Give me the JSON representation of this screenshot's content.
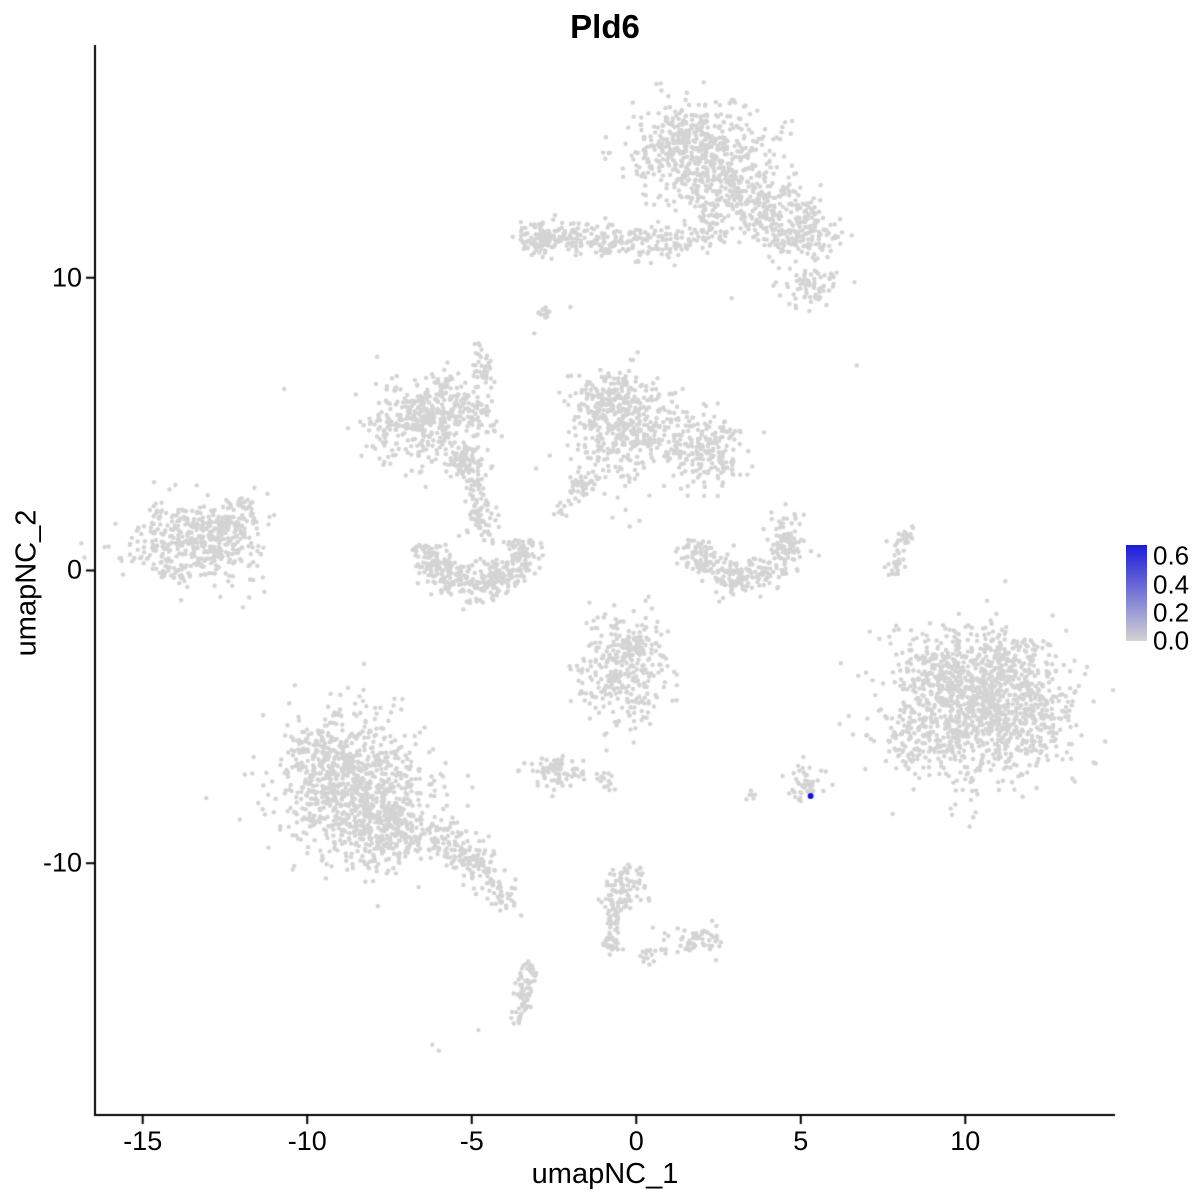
{
  "chart_data": {
    "type": "scatter",
    "title": "Pld6",
    "xlabel": "umapNC_1",
    "ylabel": "umapNC_2",
    "xlim": [
      -16.45,
      14.55
    ],
    "ylim": [
      -18.6,
      17.95
    ],
    "x_ticks": [
      "-15",
      "-10",
      "-5",
      "0",
      "5",
      "10"
    ],
    "x_tick_values": [
      -15,
      -10,
      -5,
      0,
      5,
      10
    ],
    "y_ticks": [
      "-10",
      "0",
      "10"
    ],
    "y_tick_values": [
      -10,
      0,
      10
    ],
    "grid": false,
    "point_color": "#d4d4d4",
    "highlight_color": "#1414d6",
    "highlight_point": {
      "x": 5.3,
      "y": -7.7,
      "value": 0.6
    },
    "legend": {
      "ticks": [
        "0.6",
        "0.4",
        "0.2",
        "0.0"
      ],
      "tick_values": [
        0.6,
        0.4,
        0.2,
        0.0
      ],
      "vmax": 0.68,
      "low_color": "#d3d3d3",
      "high_color": "#1b1bd8"
    },
    "clusters": [
      {
        "type": "gauss",
        "x": 2.0,
        "y": 14.2,
        "sx": 1.05,
        "sy": 0.85,
        "n": 520
      },
      {
        "type": "gauss",
        "x": 1.2,
        "y": 14.8,
        "sx": 0.5,
        "sy": 0.5,
        "n": 80
      },
      {
        "type": "gauss",
        "x": 3.3,
        "y": 12.9,
        "sx": 0.6,
        "sy": 0.6,
        "n": 120
      },
      {
        "type": "gauss",
        "x": 4.3,
        "y": 12.2,
        "sx": 0.7,
        "sy": 0.6,
        "n": 150
      },
      {
        "type": "gauss",
        "x": 5.0,
        "y": 11.4,
        "sx": 0.6,
        "sy": 0.5,
        "n": 120
      },
      {
        "type": "gauss",
        "x": 5.3,
        "y": 9.8,
        "sx": 0.45,
        "sy": 0.4,
        "n": 70
      },
      {
        "type": "streak",
        "x1": 2.1,
        "y1": 12.8,
        "x2": 2.3,
        "y2": 11.6,
        "jitter": 0.25,
        "n": 40
      },
      {
        "type": "streak",
        "x1": -3.3,
        "y1": 11.4,
        "x2": 0.3,
        "y2": 11.2,
        "jitter": 0.28,
        "n": 200
      },
      {
        "type": "gauss",
        "x": -2.9,
        "y": 11.4,
        "sx": 0.35,
        "sy": 0.3,
        "n": 60
      },
      {
        "type": "gauss",
        "x": 0.8,
        "y": 11.2,
        "sx": 0.4,
        "sy": 0.3,
        "n": 50
      },
      {
        "type": "streak",
        "x1": 1.2,
        "y1": 11.3,
        "x2": 2.6,
        "y2": 11.5,
        "jitter": 0.2,
        "n": 40
      },
      {
        "type": "gauss",
        "x": -2.8,
        "y": 8.8,
        "sx": 0.18,
        "sy": 0.15,
        "n": 14
      },
      {
        "type": "gauss",
        "x": -0.4,
        "y": 4.9,
        "sx": 0.8,
        "sy": 0.95,
        "n": 420
      },
      {
        "type": "gauss",
        "x": -0.9,
        "y": 6.0,
        "sx": 0.35,
        "sy": 0.45,
        "n": 70
      },
      {
        "type": "gauss",
        "x": 1.8,
        "y": 4.3,
        "sx": 0.65,
        "sy": 0.6,
        "n": 160
      },
      {
        "type": "gauss",
        "x": 2.6,
        "y": 3.7,
        "sx": 0.4,
        "sy": 0.5,
        "n": 60
      },
      {
        "type": "streak",
        "x1": -1.3,
        "y1": 3.3,
        "x2": -2.5,
        "y2": 1.9,
        "jitter": 0.15,
        "n": 45
      },
      {
        "type": "gauss",
        "x": -6.6,
        "y": 5.0,
        "sx": 0.85,
        "sy": 0.75,
        "n": 330
      },
      {
        "type": "gauss",
        "x": -5.6,
        "y": 5.8,
        "sx": 0.45,
        "sy": 0.5,
        "n": 80
      },
      {
        "type": "streak",
        "x1": -4.8,
        "y1": 7.6,
        "x2": -4.5,
        "y2": 6.3,
        "jitter": 0.15,
        "n": 35
      },
      {
        "type": "streak",
        "x1": -5.0,
        "y1": 6.0,
        "x2": -4.4,
        "y2": 4.6,
        "jitter": 0.2,
        "n": 40
      },
      {
        "type": "gauss",
        "x": -5.2,
        "y": 3.8,
        "sx": 0.3,
        "sy": 0.3,
        "n": 70
      },
      {
        "type": "streak",
        "x1": -5.0,
        "y1": 3.4,
        "x2": -4.7,
        "y2": 2.0,
        "jitter": 0.18,
        "n": 50
      },
      {
        "type": "arc",
        "cx": -4.9,
        "cy": 1.0,
        "r": 1.5,
        "a0": 184,
        "a1": 362,
        "jitter": 0.3,
        "n": 380
      },
      {
        "type": "gauss",
        "x": -4.7,
        "y": 1.6,
        "sx": 0.3,
        "sy": 0.3,
        "n": 40
      },
      {
        "type": "gauss",
        "x": -13.4,
        "y": 0.9,
        "sx": 0.95,
        "sy": 0.7,
        "n": 420
      },
      {
        "type": "gauss",
        "x": -12.4,
        "y": 1.6,
        "sx": 0.5,
        "sy": 0.4,
        "n": 70
      },
      {
        "type": "gauss",
        "x": -11.9,
        "y": 2.2,
        "sx": 0.25,
        "sy": 0.2,
        "n": 20
      },
      {
        "type": "arc",
        "cx": 3.2,
        "cy": 1.2,
        "r": 1.5,
        "a0": 185,
        "a1": 360,
        "jitter": 0.3,
        "n": 300
      },
      {
        "type": "gauss",
        "x": 4.6,
        "y": 1.6,
        "sx": 0.25,
        "sy": 0.3,
        "n": 25
      },
      {
        "type": "streak",
        "x1": 7.7,
        "y1": -0.2,
        "x2": 8.3,
        "y2": 1.6,
        "jitter": 0.12,
        "n": 45
      },
      {
        "type": "gauss",
        "x": -0.4,
        "y": -3.5,
        "sx": 0.7,
        "sy": 0.95,
        "n": 300
      },
      {
        "type": "gauss",
        "x": 0.1,
        "y": -2.6,
        "sx": 0.35,
        "sy": 0.35,
        "n": 50
      },
      {
        "type": "gauss",
        "x": -2.4,
        "y": -6.9,
        "sx": 0.42,
        "sy": 0.3,
        "n": 80
      },
      {
        "type": "gauss",
        "x": -0.9,
        "y": -7.1,
        "sx": 0.18,
        "sy": 0.2,
        "n": 14
      },
      {
        "type": "gauss",
        "x": 5.1,
        "y": -7.3,
        "sx": 0.28,
        "sy": 0.32,
        "n": 45
      },
      {
        "type": "gauss",
        "x": 3.5,
        "y": -7.7,
        "sx": 0.12,
        "sy": 0.1,
        "n": 6
      },
      {
        "type": "gauss",
        "x": 10.4,
        "y": -4.9,
        "sx": 1.25,
        "sy": 1.15,
        "n": 950
      },
      {
        "type": "gauss",
        "x": 9.1,
        "y": -3.4,
        "sx": 0.7,
        "sy": 0.7,
        "n": 180
      },
      {
        "type": "gauss",
        "x": 11.3,
        "y": -3.0,
        "sx": 0.8,
        "sy": 0.6,
        "n": 160
      },
      {
        "type": "gauss",
        "x": 12.2,
        "y": -4.5,
        "sx": 0.5,
        "sy": 0.7,
        "n": 90
      },
      {
        "type": "gauss",
        "x": 8.3,
        "y": -5.9,
        "sx": 0.4,
        "sy": 0.5,
        "n": 60
      },
      {
        "type": "gauss",
        "x": -8.5,
        "y": -7.6,
        "sx": 1.15,
        "sy": 1.25,
        "n": 900
      },
      {
        "type": "gauss",
        "x": -9.6,
        "y": -6.3,
        "sx": 0.6,
        "sy": 0.6,
        "n": 130
      },
      {
        "type": "gauss",
        "x": -7.2,
        "y": -9.0,
        "sx": 0.6,
        "sy": 0.6,
        "n": 150
      },
      {
        "type": "streak",
        "x1": -6.2,
        "y1": -8.9,
        "x2": -4.3,
        "y2": -10.6,
        "jitter": 0.35,
        "n": 160
      },
      {
        "type": "streak",
        "x1": -4.2,
        "y1": -10.8,
        "x2": -3.8,
        "y2": -11.5,
        "jitter": 0.2,
        "n": 30
      },
      {
        "type": "gauss",
        "x": -0.4,
        "y": -10.8,
        "sx": 0.35,
        "sy": 0.4,
        "n": 80
      },
      {
        "type": "streak",
        "x1": -0.6,
        "y1": -11.4,
        "x2": -0.8,
        "y2": -12.9,
        "jitter": 0.15,
        "n": 60
      },
      {
        "type": "gauss",
        "x": 1.9,
        "y": -12.6,
        "sx": 0.35,
        "sy": 0.3,
        "n": 55
      },
      {
        "type": "streak",
        "x1": 0.2,
        "y1": -13.2,
        "x2": 1.0,
        "y2": -12.9,
        "jitter": 0.12,
        "n": 18
      },
      {
        "type": "streak",
        "x1": -3.2,
        "y1": -13.4,
        "x2": -3.6,
        "y2": -15.4,
        "jitter": 0.15,
        "n": 55
      },
      {
        "type": "gauss",
        "x": -3.4,
        "y": -14.2,
        "sx": 0.15,
        "sy": 0.3,
        "n": 20
      }
    ],
    "singles": [
      [
        -10.7,
        6.2
      ],
      [
        6.7,
        7.0
      ],
      [
        -4.8,
        -15.7
      ],
      [
        -6.2,
        -16.2
      ],
      [
        -6.0,
        -16.4
      ],
      [
        0.1,
        1.7
      ],
      [
        -0.2,
        1.5
      ],
      [
        2.9,
        9.3
      ],
      [
        -2.0,
        9.0
      ],
      [
        -3.1,
        8.1
      ]
    ]
  }
}
